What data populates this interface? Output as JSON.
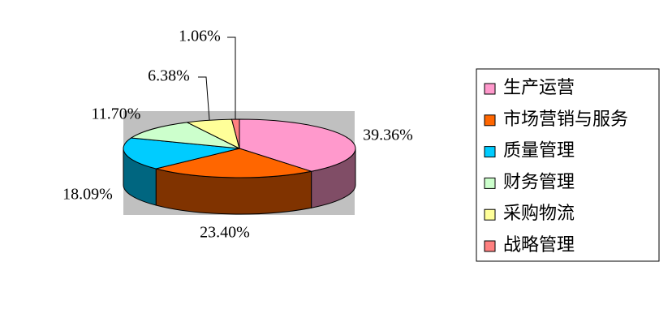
{
  "chart_data": {
    "type": "pie",
    "categories": [
      "生产运营",
      "市场营销与服务",
      "质量管理",
      "财务管理",
      "采购物流",
      "战略管理"
    ],
    "values": [
      39.36,
      23.4,
      18.09,
      11.7,
      6.38,
      1.06
    ],
    "value_labels": [
      "39.36%",
      "23.40%",
      "18.09%",
      "11.70%",
      "6.38%",
      "1.06%"
    ],
    "colors": [
      "#ff99cc",
      "#ff6600",
      "#00ccff",
      "#ccffcc",
      "#ffff99",
      "#ff8080"
    ],
    "legend": "right"
  }
}
